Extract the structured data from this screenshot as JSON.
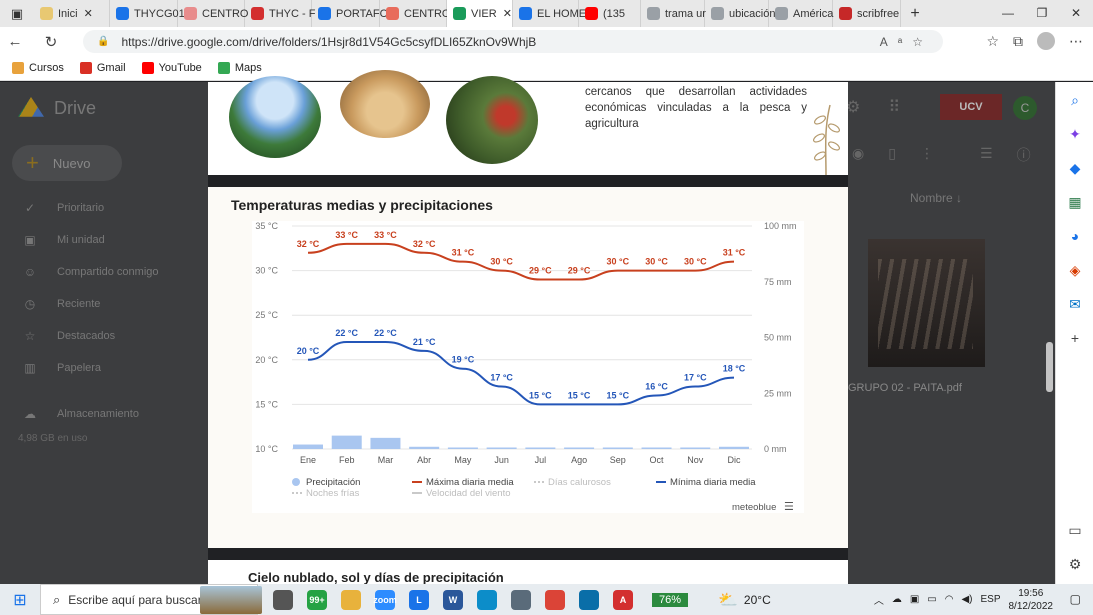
{
  "browser": {
    "tabs": [
      {
        "label": "Inici",
        "color": "#e8c872",
        "closable": true
      },
      {
        "label": "THYCG01",
        "color": "#1a73e8",
        "closable": false
      },
      {
        "label": "CENTRO",
        "color": "#e88c8c",
        "closable": false
      },
      {
        "label": "THYC - F",
        "color": "#d32f2f",
        "closable": false
      },
      {
        "label": "PORTAFC",
        "color": "#1a73e8",
        "closable": false
      },
      {
        "label": "CENTRO",
        "color": "#e86c5c",
        "closable": false
      },
      {
        "label": "VIER",
        "color": "#1a9b5a",
        "closable": true,
        "active": true
      },
      {
        "label": "EL HOME",
        "color": "#1a73e8",
        "closable": false
      },
      {
        "label": "(135",
        "color": "#ff0000",
        "closable": false
      },
      {
        "label": "trama ur",
        "color": "#9aa0a6",
        "closable": false
      },
      {
        "label": "ubicación",
        "color": "#9aa0a6",
        "closable": false
      },
      {
        "label": "América",
        "color": "#9aa0a6",
        "closable": false
      },
      {
        "label": "scribfree",
        "color": "#c62828",
        "closable": false
      }
    ],
    "url": "https://drive.google.com/drive/folders/1Hsjr8d1V54Gc5csyfDLI65ZknOv9WhjB",
    "bookmarks": [
      {
        "label": "Cursos",
        "color": "#e8a23c"
      },
      {
        "label": "Gmail",
        "color": "#d93025"
      },
      {
        "label": "YouTube",
        "color": "#ff0000"
      },
      {
        "label": "Maps",
        "color": "#34a853"
      }
    ]
  },
  "drive": {
    "app_name": "Drive",
    "new_button": "Nuevo",
    "sidebar": [
      {
        "label": "Prioritario",
        "icon": "check-circle-icon",
        "glyph": "✓"
      },
      {
        "label": "Mi unidad",
        "icon": "drive-icon",
        "glyph": "▣"
      },
      {
        "label": "Compartido conmigo",
        "icon": "people-icon",
        "glyph": "☺"
      },
      {
        "label": "Reciente",
        "icon": "clock-icon",
        "glyph": "◷"
      },
      {
        "label": "Destacados",
        "icon": "star-icon",
        "glyph": "☆"
      },
      {
        "label": "Papelera",
        "icon": "trash-icon",
        "glyph": "▥"
      },
      {
        "label": "Almacenamiento",
        "icon": "cloud-icon",
        "glyph": "☁"
      }
    ],
    "storage_used": "4,98 GB en uso",
    "sort_label": "Nombre",
    "org_badge": "UCV",
    "user_initial": "C",
    "file_name": "GRUPO 02 - PAITA.pdf"
  },
  "document": {
    "top_paragraph": "cercanos que desarrollan actividades económicas vinculadas a la pesca y agricultura",
    "heading": "Temperaturas medias y precipitaciones",
    "footer_strip": "",
    "next_heading": "Cielo nublado, sol y días de precipitación"
  },
  "chart_data": {
    "type": "line",
    "categories": [
      "Ene",
      "Feb",
      "Mar",
      "Abr",
      "May",
      "Jun",
      "Jul",
      "Ago",
      "Sep",
      "Oct",
      "Nov",
      "Dic"
    ],
    "y_left_ticks": [
      "35 °C",
      "30 °C",
      "25 °C",
      "20 °C",
      "15 °C",
      "10 °C"
    ],
    "y_right_ticks": [
      "100 mm",
      "75 mm",
      "50 mm",
      "25 mm",
      "0 mm"
    ],
    "ylim_temp": [
      10,
      35
    ],
    "ylim_precip": [
      0,
      100
    ],
    "series": [
      {
        "name": "Máxima diaria media",
        "color": "#c8401e",
        "values": [
          32,
          33,
          33,
          32,
          31,
          30,
          29,
          29,
          30,
          30,
          30,
          31
        ],
        "labels": [
          "32 °C",
          "33 °C",
          "33 °C",
          "32 °C",
          "31 °C",
          "30 °C",
          "29 °C",
          "29 °C",
          "30 °C",
          "30 °C",
          "30 °C",
          "31 °C"
        ]
      },
      {
        "name": "Mínima diaria media",
        "color": "#2456b8",
        "values": [
          20,
          22,
          22,
          21,
          19,
          17,
          15,
          15,
          15,
          16,
          17,
          18
        ],
        "labels": [
          "20 °C",
          "22 °C",
          "22 °C",
          "21 °C",
          "19 °C",
          "17 °C",
          "15 °C",
          "15 °C",
          "15 °C",
          "16 °C",
          "17 °C",
          "18 °C"
        ]
      },
      {
        "name": "Precipitación",
        "color": "#a9c6f0",
        "values": [
          2,
          6,
          5,
          1,
          0,
          0,
          0,
          0,
          0,
          0,
          0,
          1
        ]
      }
    ],
    "legend": [
      {
        "label": "Precipitación",
        "color": "#a9c6f0",
        "style": "dot"
      },
      {
        "label": "Máxima diaria media",
        "color": "#c8401e",
        "style": "line"
      },
      {
        "label": "Días calurosos",
        "color": "#c9c9c9",
        "style": "dash"
      },
      {
        "label": "Mínima diaria media",
        "color": "#2456b8",
        "style": "line"
      },
      {
        "label": "Noches frías",
        "color": "#c9c9c9",
        "style": "dash"
      },
      {
        "label": "Velocidad del viento",
        "color": "#c9c9c9",
        "style": "line"
      }
    ],
    "source": "meteoblue"
  },
  "taskbar": {
    "search_placeholder": "Escribe aquí para buscar",
    "badge": "99+",
    "cpu": "76%",
    "temperature": "20°C",
    "language": "ESP",
    "time": "19:56",
    "date": "8/12/2022",
    "apps": [
      {
        "name": "task-view-icon",
        "label": "",
        "color": "#555"
      },
      {
        "name": "whatsapp-icon",
        "label": "99+",
        "color": "#25a244"
      },
      {
        "name": "explorer-icon",
        "label": "",
        "color": "#e8b23c"
      },
      {
        "name": "zoom-icon",
        "label": "zoom",
        "color": "#2d8cff"
      },
      {
        "name": "classroom-icon",
        "label": "L",
        "color": "#1a73e8"
      },
      {
        "name": "word-icon",
        "label": "W",
        "color": "#2b579a"
      },
      {
        "name": "edge-icon",
        "label": "",
        "color": "#0c8dc9"
      },
      {
        "name": "printer-icon",
        "label": "",
        "color": "#5a6b7a"
      },
      {
        "name": "chrome-icon",
        "label": "",
        "color": "#db4437"
      },
      {
        "name": "app-icon",
        "label": "",
        "color": "#0a6ea8"
      },
      {
        "name": "acrobat-icon",
        "label": "A",
        "color": "#d32f2f"
      }
    ]
  }
}
